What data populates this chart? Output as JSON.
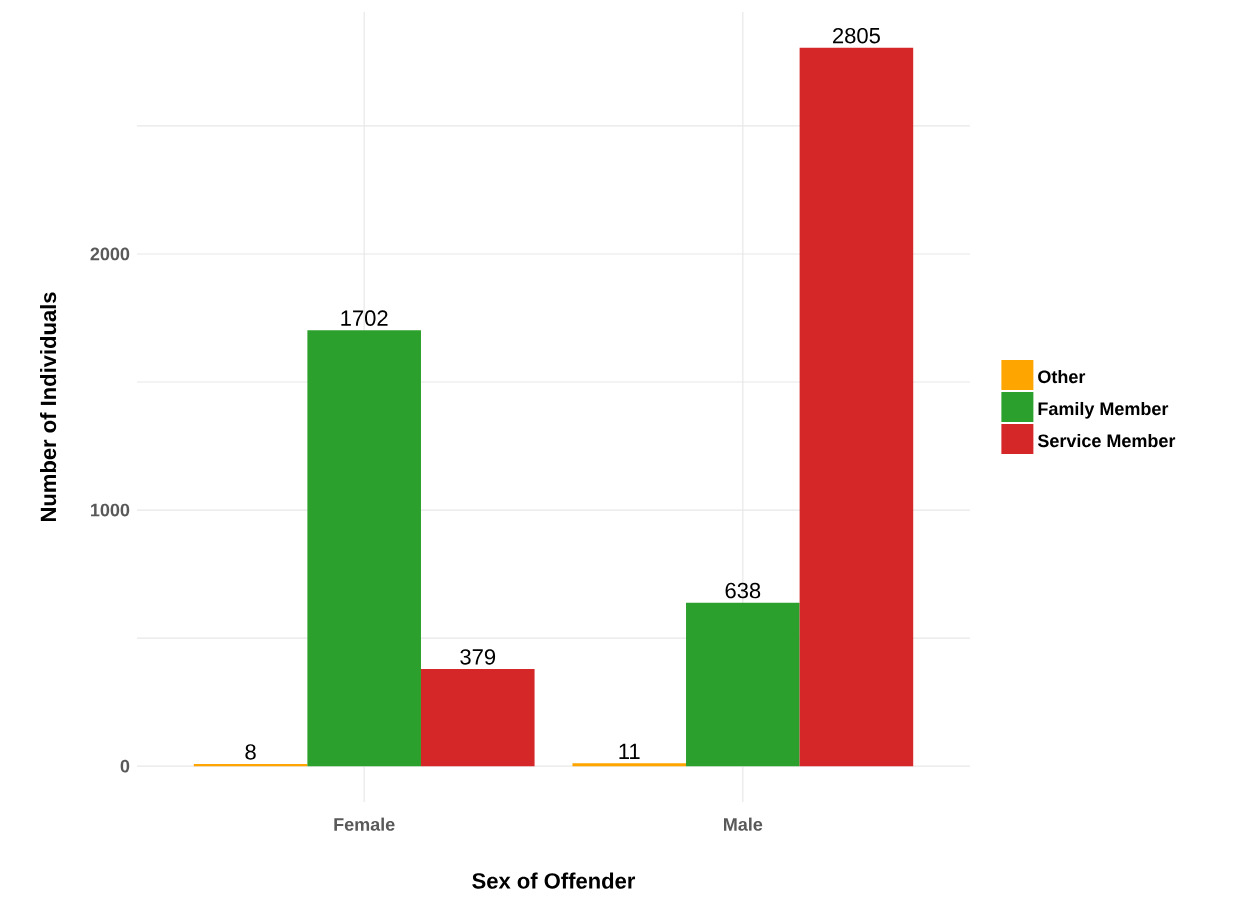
{
  "chart_data": {
    "type": "bar",
    "xlabel": "Sex of Offender",
    "ylabel": "Number of Individuals",
    "categories": [
      "Female",
      "Male"
    ],
    "series": [
      {
        "name": "Other",
        "color": "#ffa500",
        "values": [
          8,
          11
        ]
      },
      {
        "name": "Family Member",
        "color": "#2ca02c",
        "values": [
          1702,
          638
        ]
      },
      {
        "name": "Service Member",
        "color": "#d62728",
        "values": [
          379,
          2805
        ]
      }
    ],
    "ylim": [
      -140,
      2945
    ],
    "yticks": [
      0,
      {
        "value": 500,
        "label": null
      },
      1000,
      {
        "value": 1500,
        "label": null
      },
      2000,
      {
        "value": 2500,
        "label": null
      }
    ],
    "grid": true,
    "legend": "right",
    "data_labels": true
  }
}
